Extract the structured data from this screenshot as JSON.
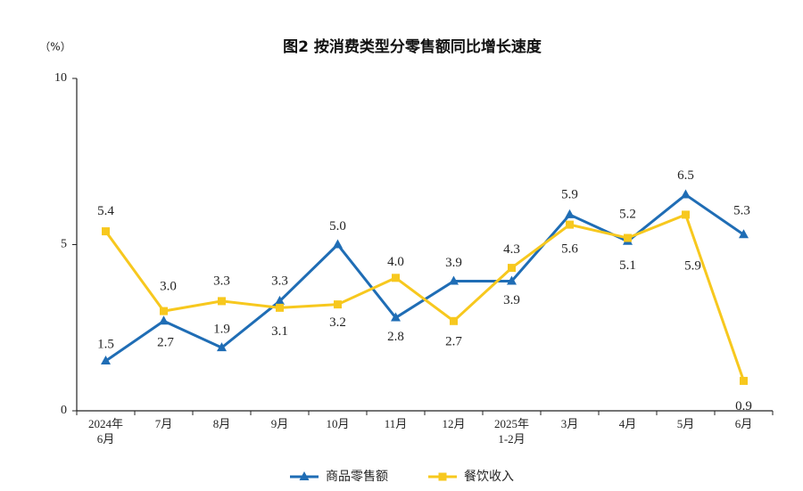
{
  "chart_data": {
    "type": "line",
    "title": "图2 按消费类型分零售额同比增长速度",
    "ylabel": "（%）",
    "xlabel": "",
    "categories": [
      "2024年\n6月",
      "7月",
      "8月",
      "9月",
      "10月",
      "11月",
      "12月",
      "2025年\n1-2月",
      "3月",
      "4月",
      "5月",
      "6月"
    ],
    "ylim": [
      0,
      10
    ],
    "yticks": [
      0,
      5,
      10
    ],
    "grid": false,
    "legend_position": "bottom",
    "series": [
      {
        "name": "商品零售额",
        "values": [
          1.5,
          2.7,
          1.9,
          3.3,
          5.0,
          2.8,
          3.9,
          3.9,
          5.9,
          5.1,
          6.5,
          5.3
        ],
        "color": "#1f6db5",
        "marker": "triangle"
      },
      {
        "name": "餐饮收入",
        "values": [
          5.4,
          3.0,
          3.3,
          3.1,
          3.2,
          4.0,
          2.7,
          4.3,
          5.6,
          5.2,
          5.9,
          0.9
        ],
        "color": "#f7c81e",
        "marker": "square"
      }
    ]
  }
}
